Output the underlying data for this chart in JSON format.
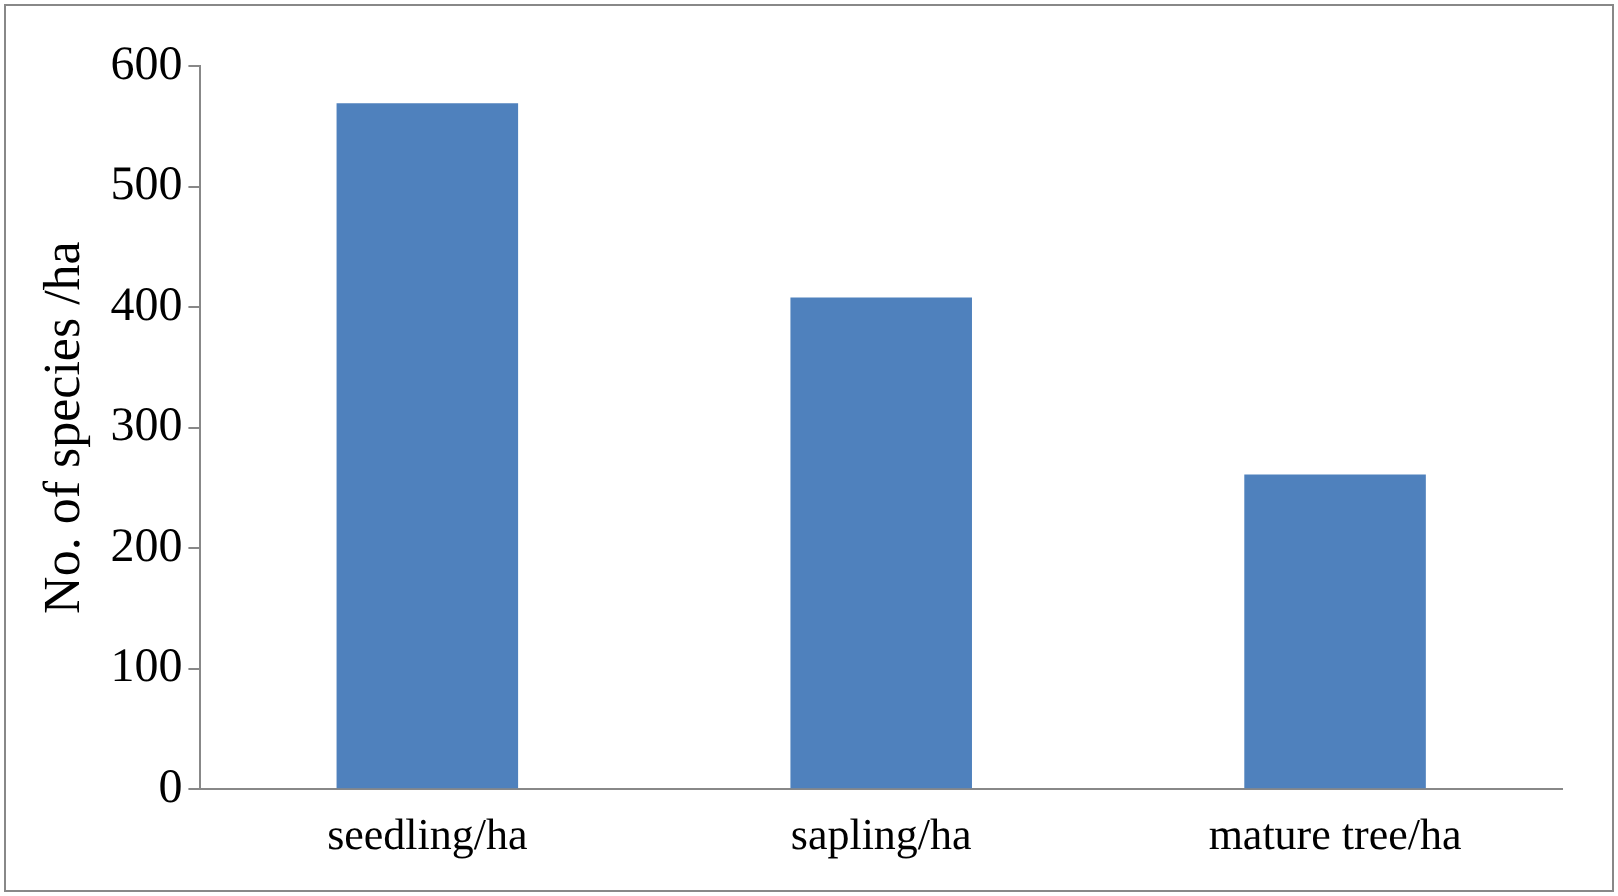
{
  "chart_data": {
    "type": "bar",
    "ylabel": "No. of species /ha",
    "categories": [
      "seedling/ha",
      "sapling/ha",
      "mature tree/ha"
    ],
    "values": [
      569,
      408,
      261
    ],
    "color": "#4f81bd",
    "ylim": [
      0,
      600
    ],
    "yticks": [
      0,
      100,
      200,
      300,
      400,
      500,
      600
    ],
    "grid": false,
    "legend": false
  }
}
